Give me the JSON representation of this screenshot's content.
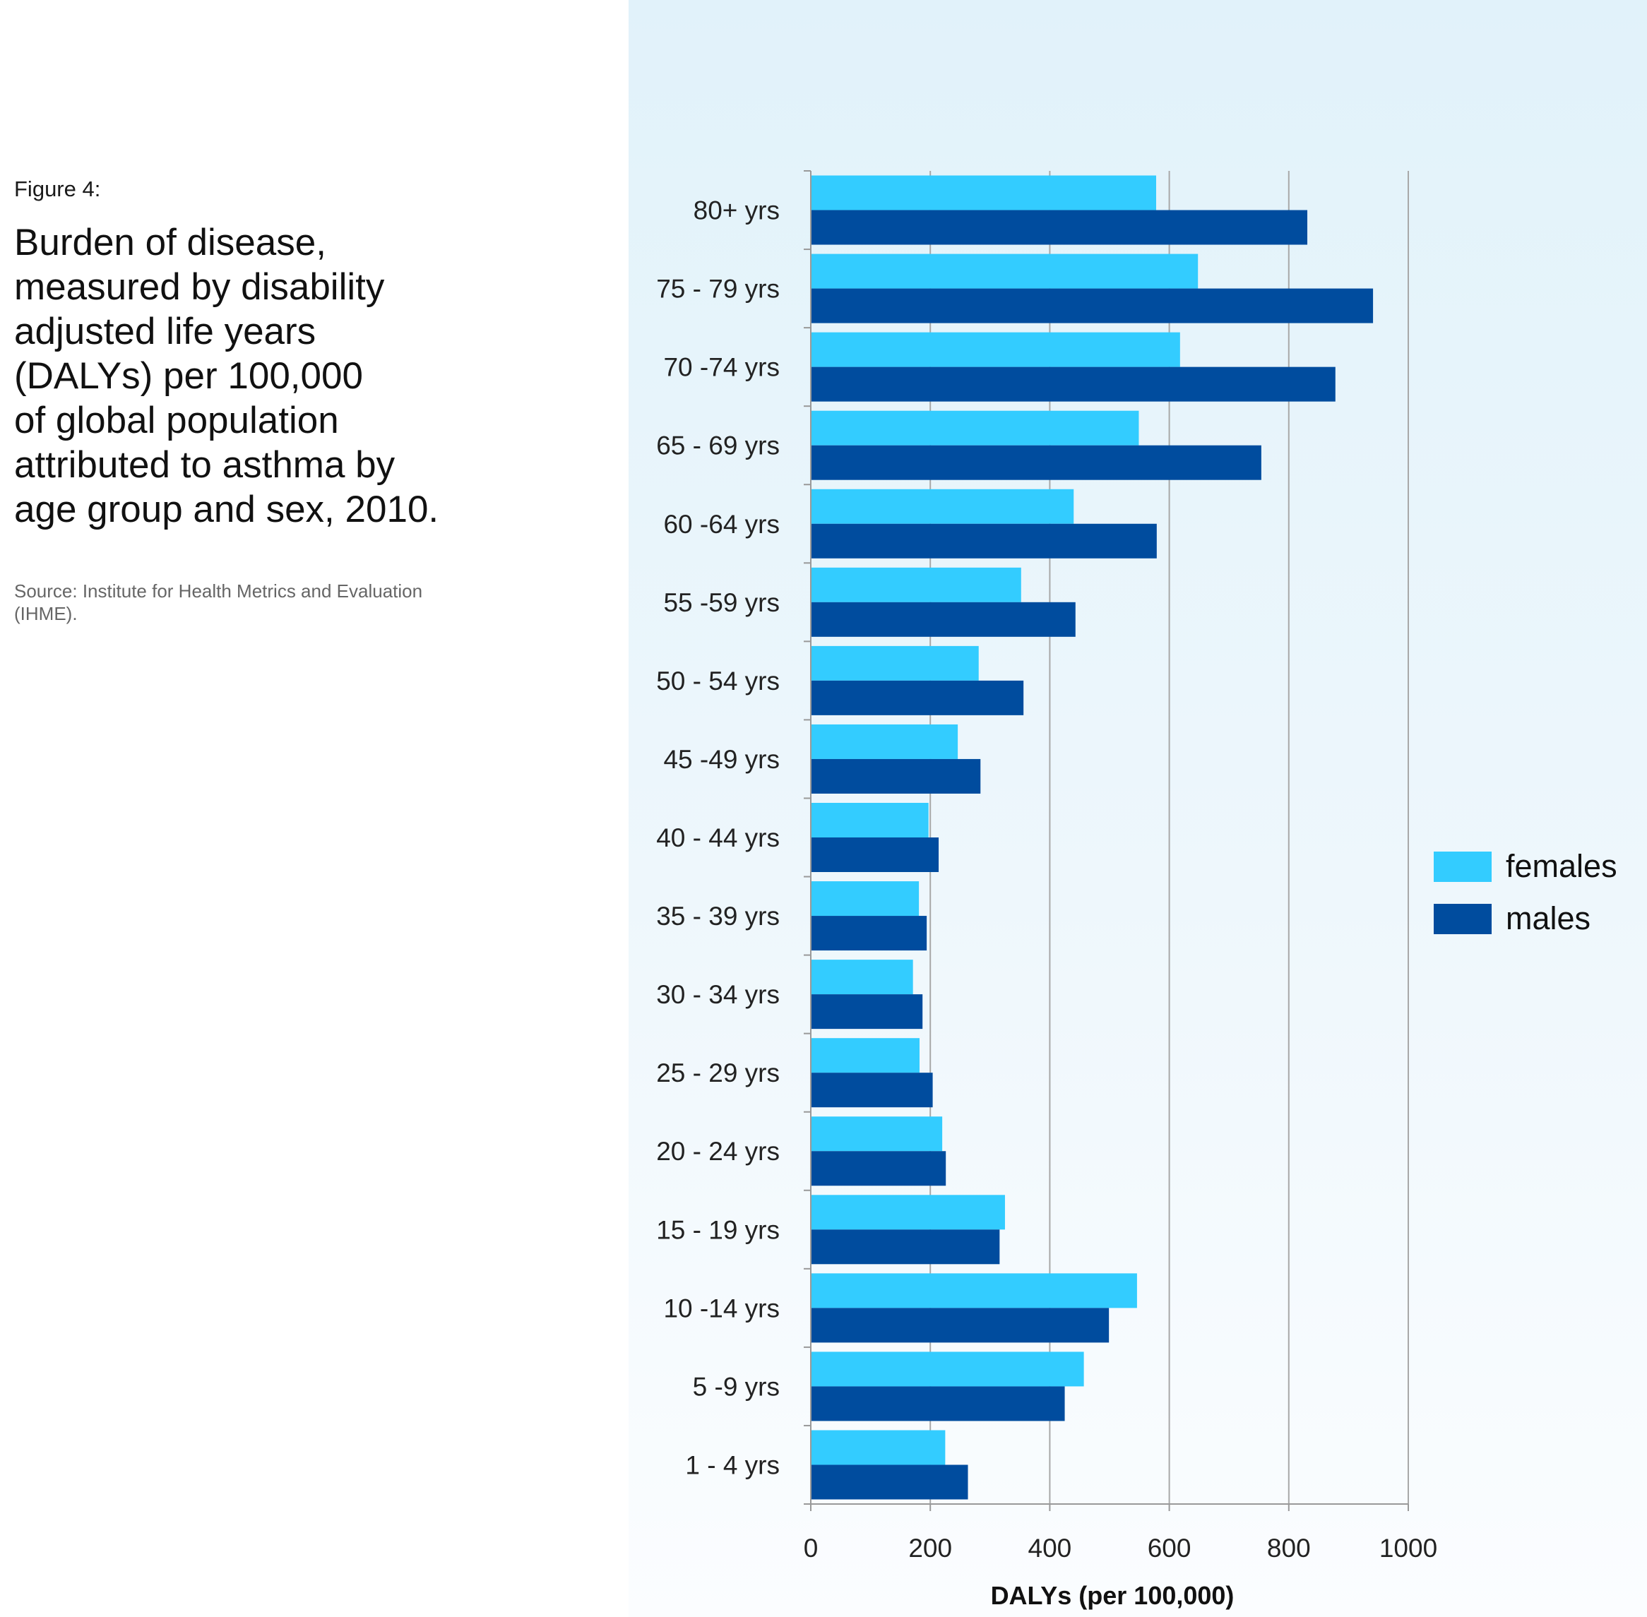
{
  "figure": {
    "label": "Figure 4:",
    "title": "Burden of disease,\nmeasured by disability\nadjusted life years\n(DALYs) per 100,000\nof global population\nattributed to asthma by\nage group and sex, 2010.",
    "source": "Source: Institute for Health Metrics and Evaluation\n(IHME)."
  },
  "chart_data": {
    "type": "bar",
    "orientation": "horizontal",
    "title": "",
    "xlabel": "DALYs (per 100,000)",
    "ylabel": "",
    "xlim": [
      0,
      1000
    ],
    "xticks": [
      0,
      200,
      400,
      600,
      800,
      1000
    ],
    "grid": true,
    "legend_position": "right",
    "categories": [
      "80+ yrs",
      "75 - 79 yrs",
      "70 -74 yrs",
      "65 - 69 yrs",
      "60 -64 yrs",
      "55 -59 yrs",
      "50 - 54 yrs",
      "45 -49 yrs",
      "40 - 44 yrs",
      "35 - 39 yrs",
      "30 - 34 yrs",
      "25 - 29 yrs",
      "20 - 24 yrs",
      "15 - 19 yrs",
      "10 -14 yrs",
      "5 -9 yrs",
      "1 - 4 yrs"
    ],
    "series": [
      {
        "name": "females",
        "color": "#33ccff",
        "values": [
          578,
          648,
          618,
          549,
          440,
          352,
          281,
          246,
          197,
          181,
          171,
          182,
          220,
          325,
          546,
          457,
          225
        ]
      },
      {
        "name": "males",
        "color": "#004c9e",
        "values": [
          831,
          941,
          878,
          754,
          579,
          443,
          356,
          284,
          214,
          194,
          187,
          204,
          226,
          316,
          499,
          425,
          263
        ]
      }
    ]
  }
}
